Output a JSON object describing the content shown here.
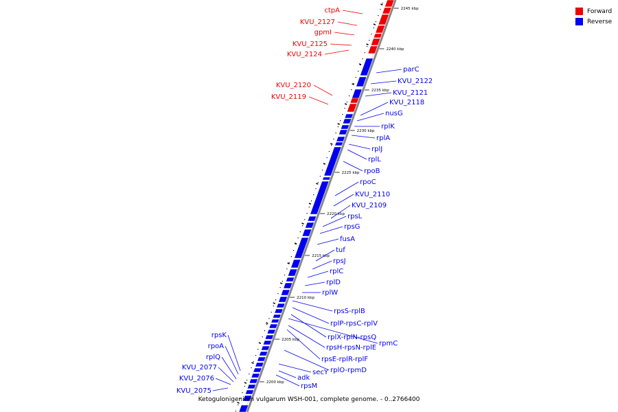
{
  "title": "Ketogulonigenium vulgarum WSH-001, complete genome. - 0..2766400",
  "legend": [
    {
      "label": "Forward",
      "color": "#ee0000"
    },
    {
      "label": "Reverse",
      "color": "#0000ee"
    }
  ],
  "colors": {
    "forward": "#ee0000",
    "reverse": "#0000ee",
    "backbone": "#888888",
    "ticks": "#000000"
  },
  "kbp_labels": [
    "2245 kbp",
    "2240 kbp",
    "2235 kbp",
    "2230 kbp",
    "2225 kbp",
    "2220 kbp",
    "2215 kbp",
    "2210 kbp",
    "2205 kbp",
    "2200 kbp"
  ],
  "forward_genes": [
    "ctpA",
    "KVU_2127",
    "gpmI",
    "KVU_2125",
    "KVU_2124",
    "KVU_2120",
    "KVU_2119"
  ],
  "reverse_genes_right": [
    "parC",
    "KVU_2122",
    "KVU_2121",
    "KVU_2118",
    "nusG",
    "rplK",
    "rplA",
    "rplJ",
    "rplL",
    "rpoB",
    "rpoC",
    "KVU_2110",
    "KVU_2109",
    "rpsL",
    "rpsG",
    "fusA",
    "tuf",
    "rpsJ",
    "rplC",
    "rplD",
    "rplW",
    "rpsS-rplB",
    "rplP-rpsC-rplV",
    "rplX-rplN-rpsQ",
    "rpmC",
    "rpsH-rpsN-rplE",
    "rpsE-rplR-rplF",
    "secY",
    "rplO-rpmD",
    "adk",
    "rpsM"
  ],
  "reverse_genes_left": [
    "rpsK",
    "rpoA",
    "rplQ",
    "KVU_2077",
    "KVU_2076",
    "KVU_2075"
  ]
}
